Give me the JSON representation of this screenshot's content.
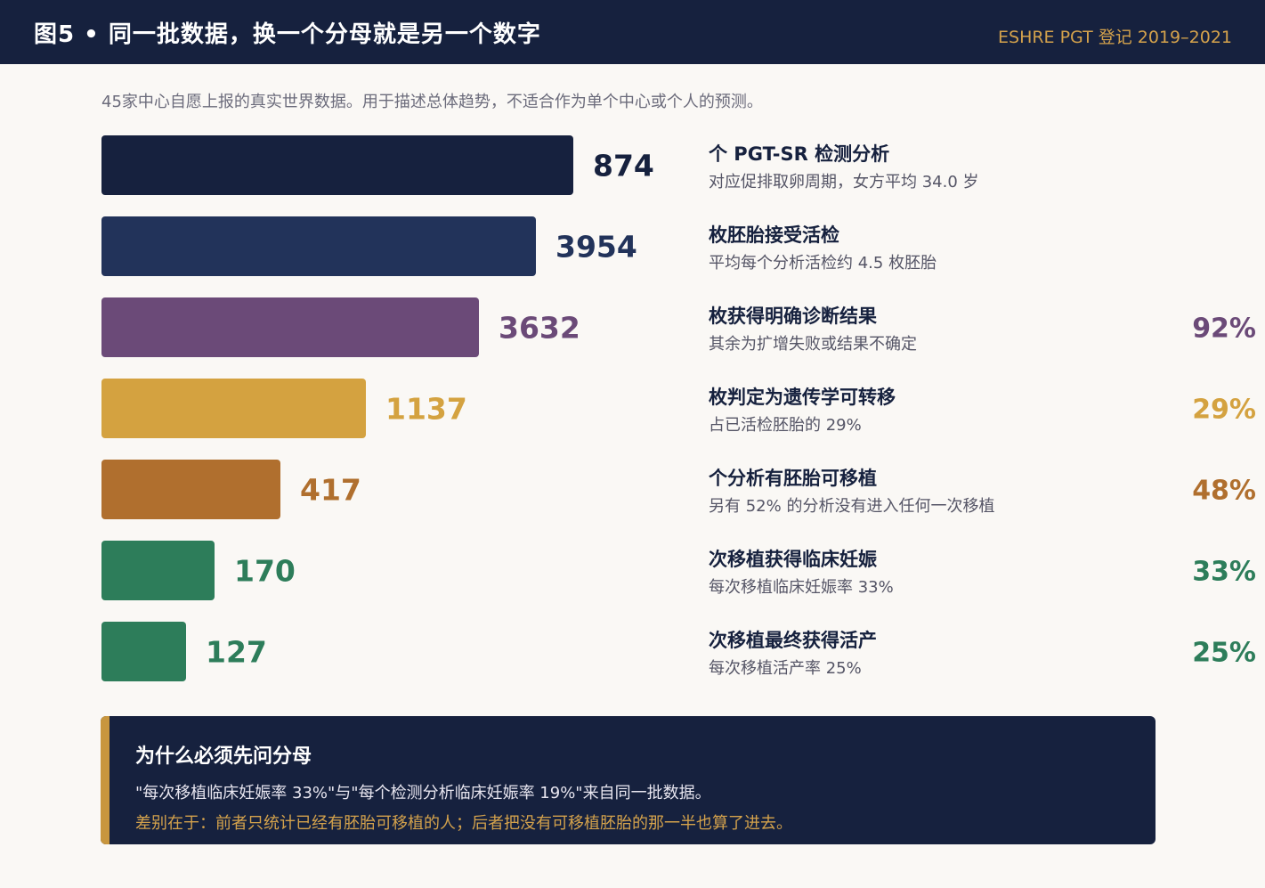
{
  "header": {
    "title": "图5 • 同一批数据，换一个分母就是另一个数字",
    "source": "ESHRE PGT 登记 2019–2021"
  },
  "subtitle": "45家中心自愿上报的真实世界数据。用于描述总体趋势，不适合作为单个中心或个人的预测。",
  "chart_data": {
    "type": "bar",
    "orientation": "horizontal",
    "bars": [
      {
        "value": 874,
        "color": "#16213e",
        "title": "个 PGT-SR 检测分析",
        "subtitle": "对应促排取卵周期，女方平均 34.0 岁",
        "pct": ""
      },
      {
        "value": 3954,
        "color": "#22335a",
        "title": "枚胚胎接受活检",
        "subtitle": "平均每个分析活检约 4.5 枚胚胎",
        "pct": ""
      },
      {
        "value": 3632,
        "color": "#6b4a78",
        "title": "枚获得明确诊断结果",
        "subtitle": "其余为扩增失败或结果不确定",
        "pct": "92%"
      },
      {
        "value": 1137,
        "color": "#d4a240",
        "title": "枚判定为遗传学可转移",
        "subtitle": "占已活检胚胎的 29%",
        "pct": "29%"
      },
      {
        "value": 417,
        "color": "#b06f2e",
        "title": "个分析有胚胎可移植",
        "subtitle": "另有 52% 的分析没有进入任何一次移植",
        "pct": "48%"
      },
      {
        "value": 170,
        "color": "#2d7d5a",
        "title": "次移植获得临床妊娠",
        "subtitle": "每次移植临床妊娠率 33%",
        "pct": "33%"
      },
      {
        "value": 127,
        "color": "#2d7d5a",
        "title": "次移植最终获得活产",
        "subtitle": "每次移植活产率 25%",
        "pct": "25%"
      }
    ]
  },
  "note": {
    "title": "为什么必须先问分母",
    "line1": "\"每次移植临床妊娠率 33%\"与\"每个检测分析临床妊娠率 19%\"来自同一批数据。",
    "line2": "差别在于：前者只统计已经有胚胎可移植的人；后者把没有可移植胚胎的那一半也算了进去。"
  }
}
